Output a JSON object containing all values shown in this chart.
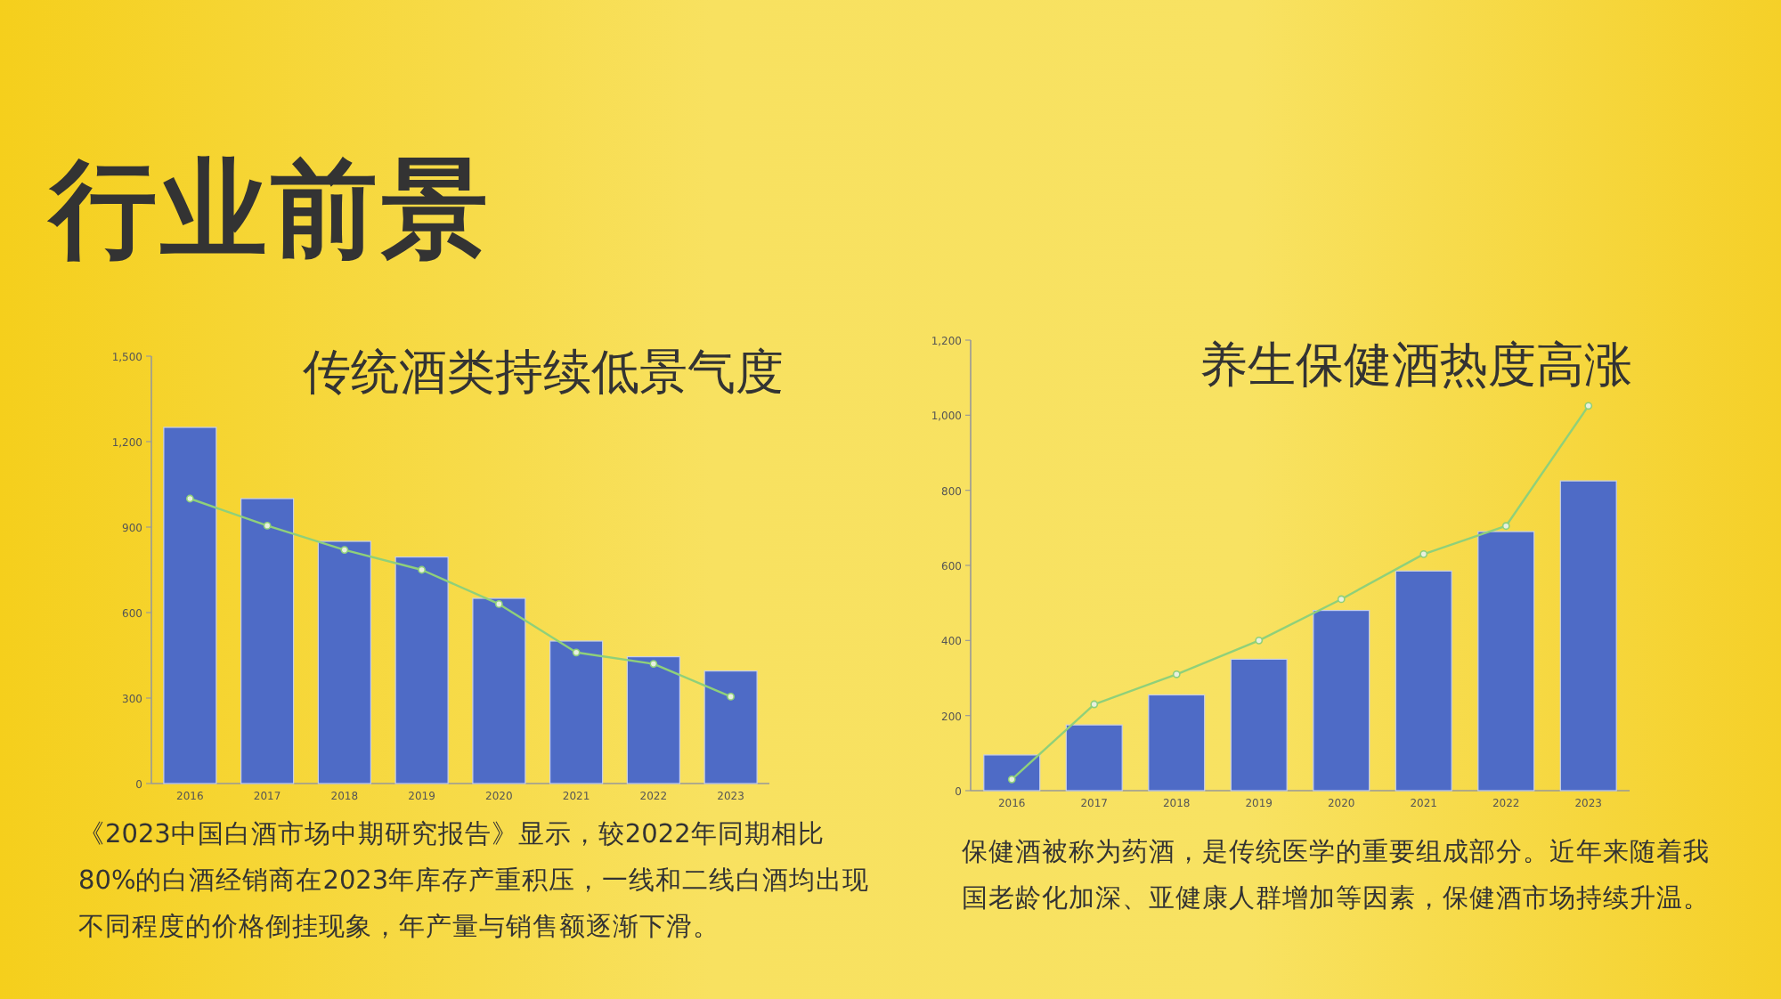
{
  "chart_data": [
    {
      "type": "bar",
      "title": "传统酒类持续低景气度",
      "categories": [
        "2016",
        "2017",
        "2018",
        "2019",
        "2020",
        "2021",
        "2022",
        "2023"
      ],
      "series": [
        {
          "color": "#4e6bc6",
          "values": [
            1250,
            1000,
            850,
            795,
            650,
            500,
            445,
            395
          ]
        },
        {
          "type": "line",
          "color": "#8fd07a",
          "values": [
            1000,
            905,
            820,
            750,
            630,
            460,
            420,
            305
          ]
        }
      ],
      "ylim": [
        0,
        1500
      ],
      "yticks": [
        0,
        {
          "value": 300,
          "label": "300"
        },
        {
          "value": 600,
          "label": "600"
        },
        {
          "value": 900,
          "label": "900"
        },
        {
          "value": 1200,
          "label": "1,200"
        },
        {
          "value": 1500,
          "label": "1,500"
        }
      ],
      "grid": false,
      "marker": "circle",
      "annotations": [
        "行业前景",
        "《2023中国白酒市场中期研究报告》显示，较2022年同期相比80%的白酒经销商在2023年库存产重积压，一线和二线白酒均出现不同程度的价格倒挂现象，年产量与销售额逐渐下滑。"
      ]
    },
    {
      "type": "bar",
      "title": "养生保健酒热度高涨",
      "categories": [
        "2016",
        "2017",
        "2018",
        "2019",
        "2020",
        "2021",
        "2022",
        "2023"
      ],
      "series": [
        {
          "color": "#4e6bc6",
          "values": [
            95,
            175,
            255,
            350,
            480,
            585,
            690,
            825
          ]
        },
        {
          "type": "line",
          "color": "#8fd07a",
          "values": [
            30,
            230,
            310,
            400,
            510,
            630,
            705,
            1025
          ]
        }
      ],
      "ylim": [
        0,
        1200
      ],
      "yticks": [
        0,
        200,
        400,
        600,
        800,
        {
          "value": 1000,
          "label": "1,000"
        },
        {
          "value": 1200,
          "label": "1,200"
        }
      ],
      "grid": false,
      "marker": "circle",
      "annotations": [
        "保健酒被称为药酒，是传统医学的重要组成部分。近年来随着我国老龄化加深、亚健康人群增加等因素，保健酒市场持续升温。"
      ]
    }
  ]
}
